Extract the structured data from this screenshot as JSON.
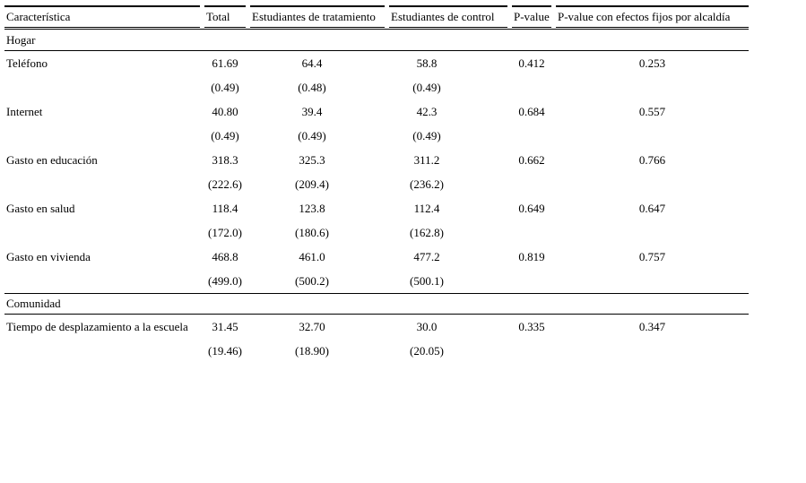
{
  "colors": {
    "background": "#ffffff",
    "text": "#000000",
    "rule": "#000000"
  },
  "table": {
    "columns": [
      "Característica",
      "Total",
      "Estudiantes de tratamiento",
      "Estudiantes de control",
      "P-value",
      "P-value con efectos fijos por alcaldía"
    ],
    "sections": [
      {
        "label": "Hogar",
        "rows": [
          {
            "label": "Teléfono",
            "values": [
              "61.69",
              "64.4",
              "58.8",
              "0.412",
              "0.253"
            ],
            "sd": [
              "(0.49)",
              "(0.48)",
              "(0.49)"
            ]
          },
          {
            "label": "Internet",
            "values": [
              "40.80",
              "39.4",
              "42.3",
              "0.684",
              "0.557"
            ],
            "sd": [
              "(0.49)",
              "(0.49)",
              "(0.49)"
            ]
          },
          {
            "label": "Gasto en educación",
            "values": [
              "318.3",
              "325.3",
              "311.2",
              "0.662",
              "0.766"
            ],
            "sd": [
              "(222.6)",
              "(209.4)",
              "(236.2)"
            ]
          },
          {
            "label": "Gasto en salud",
            "values": [
              "118.4",
              "123.8",
              "112.4",
              "0.649",
              "0.647"
            ],
            "sd": [
              "(172.0)",
              "(180.6)",
              "(162.8)"
            ]
          },
          {
            "label": "Gasto en vivienda",
            "values": [
              "468.8",
              "461.0",
              "477.2",
              "0.819",
              "0.757"
            ],
            "sd": [
              "(499.0)",
              "(500.2)",
              "(500.1)"
            ]
          }
        ]
      },
      {
        "label": "Comunidad",
        "rows": [
          {
            "label": "Tiempo de desplazamiento a la escuela",
            "values": [
              "31.45",
              "32.70",
              "30.0",
              "0.335",
              "0.347"
            ],
            "sd": [
              "(19.46)",
              "(18.90)",
              "(20.05)"
            ]
          }
        ]
      }
    ]
  }
}
